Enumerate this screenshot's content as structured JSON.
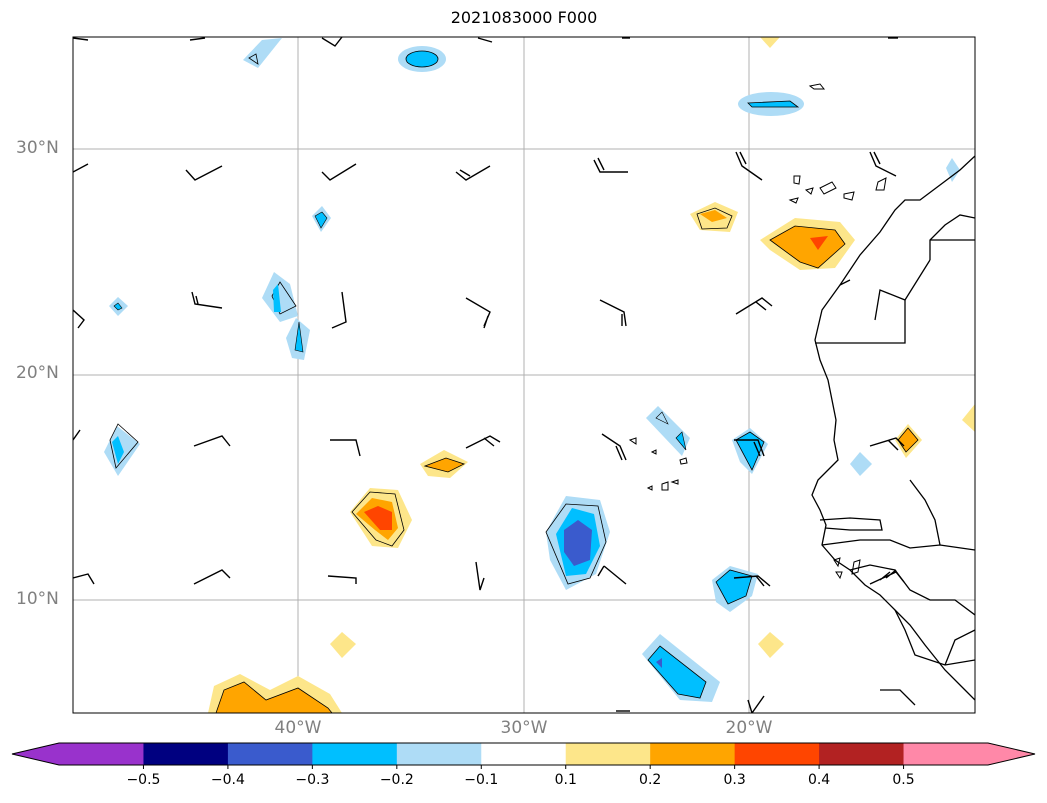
{
  "title": "2021083000 F000",
  "map": {
    "extent": {
      "lon_min": -50,
      "lon_max": -10,
      "lat_min": 5,
      "lat_max": 35
    },
    "lat_labels": [
      {
        "lat": 30,
        "text": "30°N"
      },
      {
        "lat": 20,
        "text": "20°N"
      },
      {
        "lat": 10,
        "text": "10°N"
      }
    ],
    "lon_labels": [
      {
        "lon": -40,
        "text": "40°W"
      },
      {
        "lon": -30,
        "text": "30°W"
      },
      {
        "lon": -20,
        "text": "20°W"
      }
    ],
    "gridline_color": "#b0b0b0",
    "coastline_color": "#000000"
  },
  "colorbar": {
    "colors": [
      "#9932cc",
      "#000080",
      "#3a5bcd",
      "#00bfff",
      "#aedcf6",
      "#ffffff",
      "#fde68a",
      "#ffa500",
      "#ff4500",
      "#b22222",
      "#ff88a8"
    ],
    "tick_labels": [
      "−0.5",
      "−0.4",
      "−0.3",
      "−0.2",
      "−0.1",
      "0.1",
      "0.2",
      "0.3",
      "0.4",
      "0.5"
    ],
    "extend": "both"
  }
}
